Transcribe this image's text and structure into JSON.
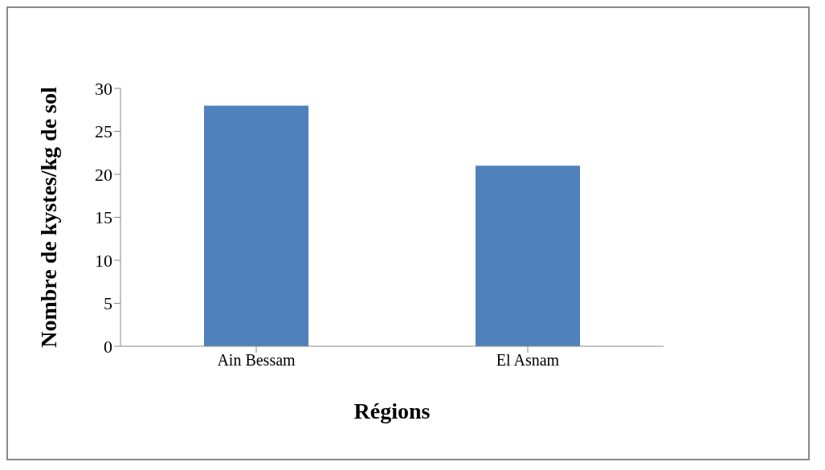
{
  "chart_data": {
    "type": "bar",
    "xlabel": "Régions",
    "ylabel": "Nombre de kystes/kg de sol",
    "categories": [
      "Ain Bessam",
      "El Asnam"
    ],
    "values": [
      28,
      21
    ],
    "color": "#4f81bd",
    "ylim": [
      0,
      30
    ],
    "yticks": [
      0,
      5,
      10,
      15,
      20,
      25,
      30
    ],
    "grid": false,
    "legend": false
  }
}
